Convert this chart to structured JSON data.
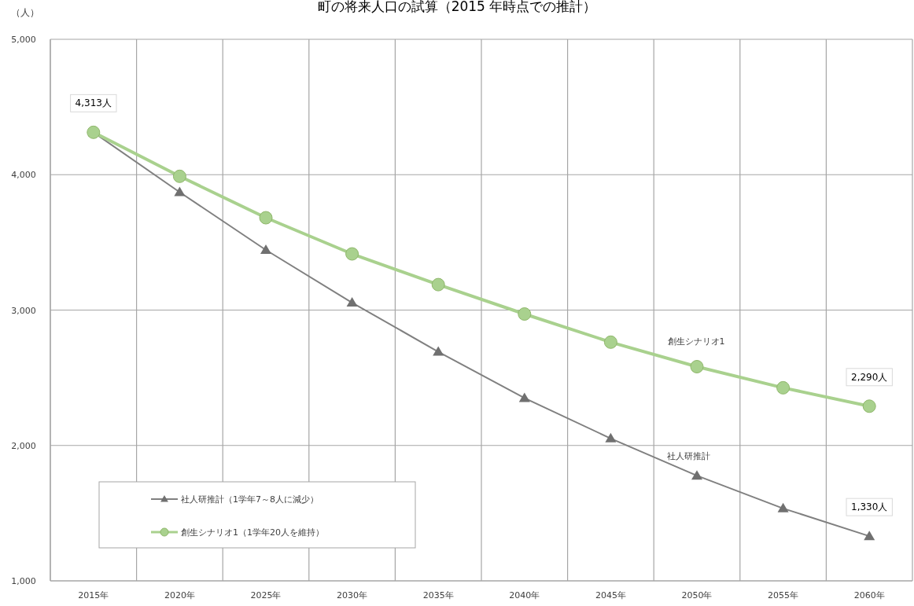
{
  "chart_data": {
    "type": "line",
    "title": "町の将来人口の試算（2015 年時点での推計）",
    "ylabel": "（人）",
    "categories": [
      "2015年",
      "2020年",
      "2025年",
      "2030年",
      "2035年",
      "2040年",
      "2045年",
      "2050年",
      "2055年",
      "2060年"
    ],
    "series": [
      {
        "name": "社人研推計（1学年7～8人に減少）",
        "color": "#808080",
        "marker": "triangle",
        "values": [
          4313,
          3871,
          3444,
          3055,
          2692,
          2350,
          2052,
          1777,
          1535,
          1330
        ],
        "value_labels": [
          "4,313人",
          null,
          null,
          null,
          null,
          null,
          null,
          null,
          null,
          "1,330人"
        ]
      },
      {
        "name": "創生シナリオ1（1学年20人を維持）",
        "color": "#a9d18e",
        "marker": "circle",
        "values": [
          4313,
          3988,
          3682,
          3415,
          3188,
          2971,
          2763,
          2582,
          2426,
          2290
        ],
        "value_labels": [
          null,
          null,
          null,
          null,
          null,
          null,
          null,
          null,
          null,
          "2,290人"
        ]
      }
    ],
    "annotations": [
      "創生シナリオ1",
      "社人研推計"
    ],
    "ylim": [
      1000,
      5000
    ],
    "yticks": [
      {
        "value": 1000,
        "label": "1,000"
      },
      {
        "value": 2000,
        "label": "2,000"
      },
      {
        "value": 3000,
        "label": "3,000"
      },
      {
        "value": 4000,
        "label": "4,000"
      },
      {
        "value": 5000,
        "label": "5,000"
      }
    ],
    "grid": true,
    "legend": "bottom left"
  }
}
